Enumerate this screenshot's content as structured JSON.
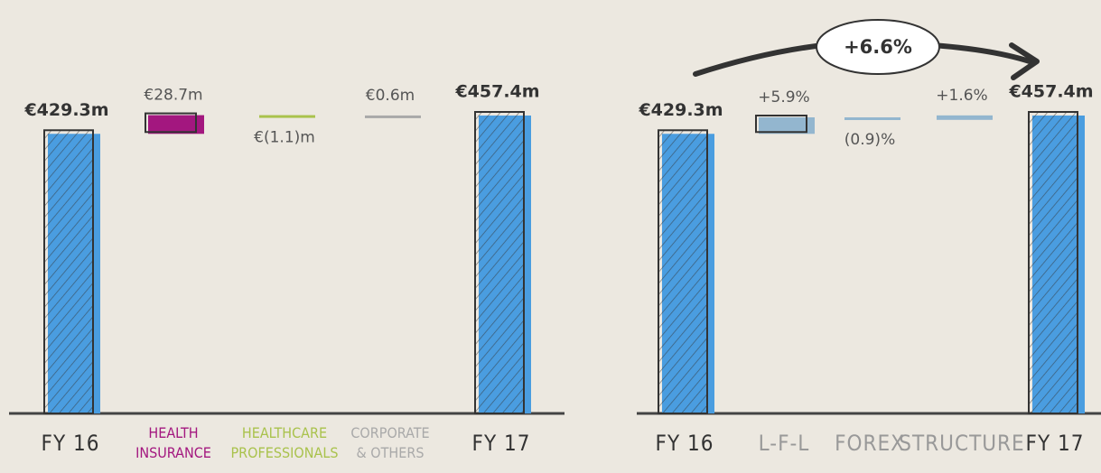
{
  "chart_data": [
    {
      "type": "waterfall",
      "categories": [
        [
          "FY 16"
        ],
        [
          "HEALTH",
          "INSURANCE"
        ],
        [
          "HEALTHCARE",
          "PROFESSIONALS"
        ],
        [
          "CORPORATE",
          "& OTHERS"
        ],
        [
          "FY 17"
        ]
      ],
      "values": [
        429.3,
        28.7,
        -1.1,
        0.6,
        457.4
      ],
      "value_labels": [
        "€429.3m",
        "€28.7m",
        "€(1.1)m",
        "€0.6m",
        "€457.4m"
      ],
      "total": [
        true,
        false,
        false,
        false,
        true
      ],
      "colors": [
        "#4a9de0",
        "#a3177f",
        "#a9c24c",
        "#a9a9a9",
        "#4a9de0"
      ],
      "label_colors": [
        "#333333",
        "#a3177f",
        "#a9c24c",
        "#a9a9a9",
        "#333333"
      ]
    },
    {
      "type": "waterfall_percent",
      "categories": [
        [
          "FY 16"
        ],
        [
          "L-F-L"
        ],
        [
          "FOREX"
        ],
        [
          "STRUCTURE"
        ],
        [
          "FY 17"
        ]
      ],
      "values": [
        429.3,
        5.9,
        -0.9,
        1.6,
        457.4
      ],
      "value_labels": [
        "€429.3m",
        "+5.9%",
        "(0.9)%",
        "+1.6%",
        "€457.4m"
      ],
      "total": [
        true,
        false,
        false,
        false,
        true
      ],
      "colors": [
        "#4a9de0",
        "#93b6cf",
        "#93b6cf",
        "#93b6cf",
        "#4a9de0"
      ],
      "label_colors": [
        "#333333",
        "#999999",
        "#999999",
        "#999999",
        "#333333"
      ],
      "annotation": "+6.6%"
    }
  ]
}
